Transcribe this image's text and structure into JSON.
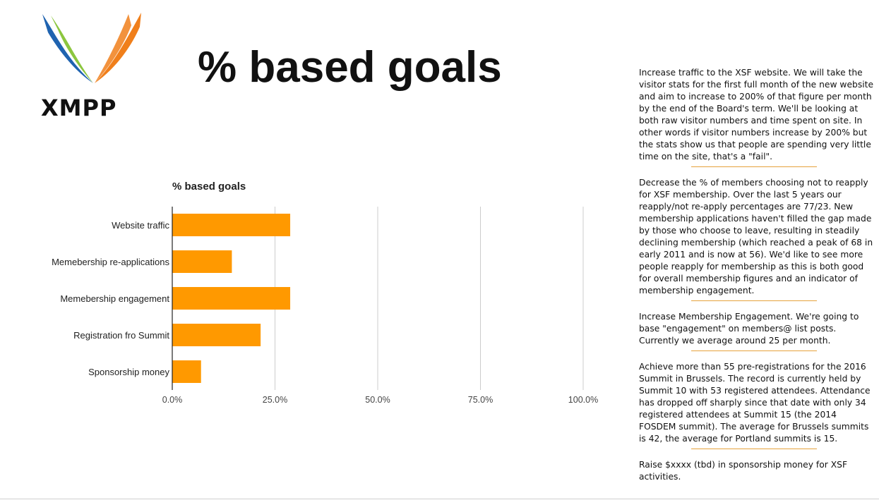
{
  "logo": {
    "text": "XMPP",
    "colors": {
      "blue": "#1f63b0",
      "green": "#8cc63f",
      "orange": "#f07f1b"
    }
  },
  "slide": {
    "title": "% based goals"
  },
  "chart_data": {
    "type": "bar",
    "orientation": "horizontal",
    "title": "% based goals",
    "categories": [
      "Website traffic",
      "Memebership re-applications",
      "Memebership engagement",
      "Registration fro Summit",
      "Sponsorship money"
    ],
    "values": [
      28.7,
      14.5,
      28.7,
      21.5,
      7.0
    ],
    "xlim": [
      0,
      100
    ],
    "xticks": [
      "0.0%",
      "25.0%",
      "50.0%",
      "75.0%",
      "100.0%"
    ],
    "xtick_values": [
      0,
      25,
      50,
      75,
      100
    ],
    "xlabel": "",
    "ylabel": "",
    "grid": true,
    "bar_color": "#ff9900"
  },
  "notes": [
    "Increase traffic to the XSF website. We will take the visitor stats for the first full month of the new website and aim to increase to 200% of that figure per month by the end of the Board's term. We'll be looking at both raw visitor numbers and time spent on site. In other words if visitor numbers increase by 200% but the stats show us that people are spending very little time on the site, that's a \"fail\".",
    "Decrease the % of members choosing not to reapply for XSF membership. Over the last 5 years our reapply/not re-apply percentages are 77/23. New membership applications haven't filled the gap made by those who choose to leave, resulting in steadily declining membership (which reached a peak of 68 in early 2011 and is now at 56). We'd like to see more people reapply for membership as this is both good for overall membership figures and an indicator of membership engagement.",
    "Increase Membership Engagement. We're going to base \"engagement\" on members@ list posts. Currently we average around 25 per month.",
    "Achieve more than 55 pre-registrations for the 2016 Summit in Brussels. The record is currently held by Summit 10 with 53 registered attendees. Attendance has dropped off sharply since that date with only 34 registered attendees at Summit 15 (the 2014 FOSDEM summit). The average for Brussels summits is 42, the average for Portland summits is 15.",
    "Raise $xxxx (tbd) in sponsorship money for XSF activities."
  ]
}
